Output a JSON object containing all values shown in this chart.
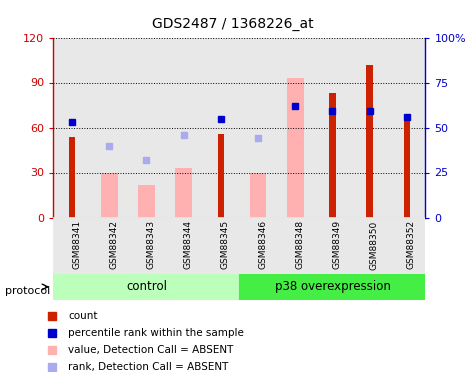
{
  "title": "GDS2487 / 1368226_at",
  "samples": [
    "GSM88341",
    "GSM88342",
    "GSM88343",
    "GSM88344",
    "GSM88345",
    "GSM88346",
    "GSM88348",
    "GSM88349",
    "GSM88350",
    "GSM88352"
  ],
  "red_bars": [
    54,
    0,
    0,
    0,
    56,
    0,
    0,
    83,
    102,
    65
  ],
  "blue_dots_right": [
    53,
    0,
    0,
    0,
    55,
    0,
    62,
    59,
    59,
    56
  ],
  "pink_bars": [
    0,
    30,
    22,
    33,
    0,
    30,
    93,
    0,
    0,
    0
  ],
  "light_blue_dots_right": [
    0,
    40,
    32,
    46,
    0,
    44,
    0,
    0,
    0,
    0
  ],
  "ylim_left": [
    0,
    120
  ],
  "ylim_right": [
    0,
    100
  ],
  "yticks_left": [
    0,
    30,
    60,
    90,
    120
  ],
  "yticks_right": [
    0,
    25,
    50,
    75,
    100
  ],
  "ytick_labels_left": [
    "0",
    "30",
    "60",
    "90",
    "120"
  ],
  "ytick_labels_right": [
    "0",
    "25",
    "50",
    "75",
    "100%"
  ],
  "left_axis_color": "#cc0000",
  "right_axis_color": "#0000cc",
  "red_bar_color": "#cc2200",
  "blue_dot_color": "#0000cc",
  "pink_bar_color": "#ffb0b0",
  "light_blue_dot_color": "#aaaaee",
  "group_control_color": "#bbffbb",
  "group_p38_color": "#44ee44",
  "bg_color": "#e8e8e8",
  "legend_items": [
    "count",
    "percentile rank within the sample",
    "value, Detection Call = ABSENT",
    "rank, Detection Call = ABSENT"
  ],
  "legend_colors": [
    "#cc2200",
    "#0000cc",
    "#ffb0b0",
    "#aaaaee"
  ],
  "n_control": 5,
  "n_p38": 5
}
